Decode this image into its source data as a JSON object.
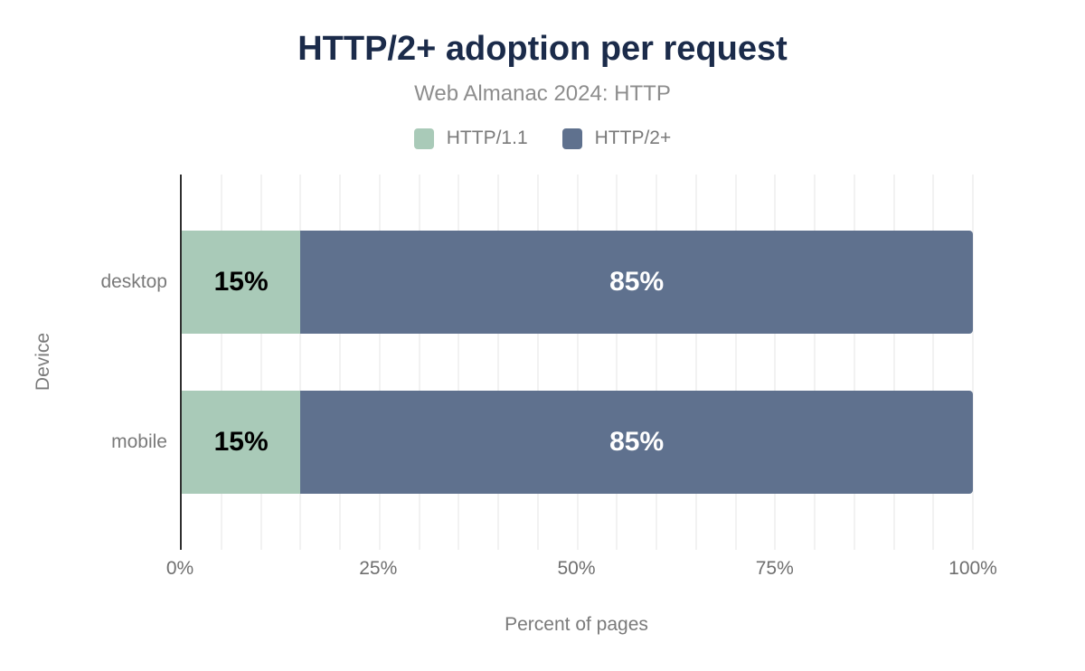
{
  "title": "HTTP/2+ adoption per request",
  "subtitle": "Web Almanac 2024: HTTP",
  "legend": [
    {
      "label": "HTTP/1.1",
      "color": "#a9cab8"
    },
    {
      "label": "HTTP/2+",
      "color": "#5f718e"
    }
  ],
  "chart_data": {
    "type": "bar",
    "orientation": "horizontal",
    "stacked": true,
    "title": "HTTP/2+ adoption per request",
    "subtitle": "Web Almanac 2024: HTTP",
    "categories": [
      "desktop",
      "mobile"
    ],
    "series": [
      {
        "name": "HTTP/1.1",
        "color": "#a9cab8",
        "label_color": "#000000",
        "values": [
          15,
          15
        ]
      },
      {
        "name": "HTTP/2+",
        "color": "#5f718e",
        "label_color": "#ffffff",
        "values": [
          85,
          85
        ]
      }
    ],
    "value_label_suffix": "%",
    "xlabel": "Percent of pages",
    "ylabel": "Device",
    "xlim": [
      0,
      100
    ],
    "x_ticks": [
      0,
      25,
      50,
      75,
      100
    ],
    "x_tick_labels": [
      "0%",
      "25%",
      "50%",
      "75%",
      "100%"
    ],
    "grid": {
      "show": true,
      "interval_percent": 5
    },
    "legend_position": "top"
  },
  "colors": {
    "title_text": "#1b2b4a",
    "subtitle_text": "#8d8d8d",
    "muted_text": "#7a7a7a",
    "tick_text": "#6f6f6f",
    "axis_line": "#2f2f2f",
    "gridline": "#f2f2f2",
    "background": "#ffffff"
  }
}
